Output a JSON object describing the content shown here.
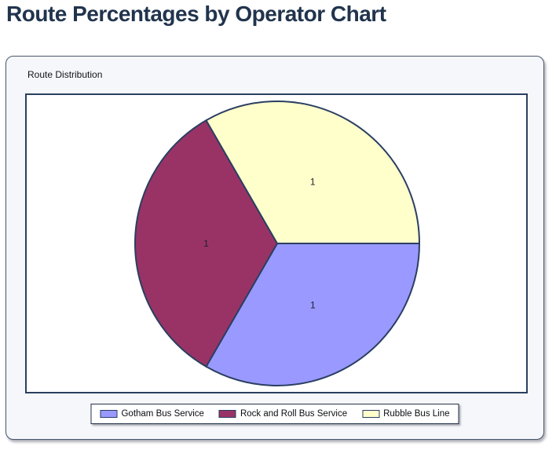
{
  "page": {
    "title": "Route Percentages by Operator Chart"
  },
  "panel": {
    "group_label": "Route Distribution"
  },
  "chart_data": {
    "type": "pie",
    "title": "Route Distribution",
    "labels": [
      "Gotham Bus Service",
      "Rock and Roll Bus Service",
      "Rubble Bus Line"
    ],
    "values": [
      1,
      1,
      1
    ],
    "point_labels": [
      "1",
      "1",
      "1"
    ],
    "colors": [
      "#9999FF",
      "#993366",
      "#FFFFCC"
    ],
    "outline_color": "#2A3F60",
    "start_angle_deg": 0,
    "direction": "clockwise",
    "legend_position": "bottom",
    "grid": "off"
  }
}
